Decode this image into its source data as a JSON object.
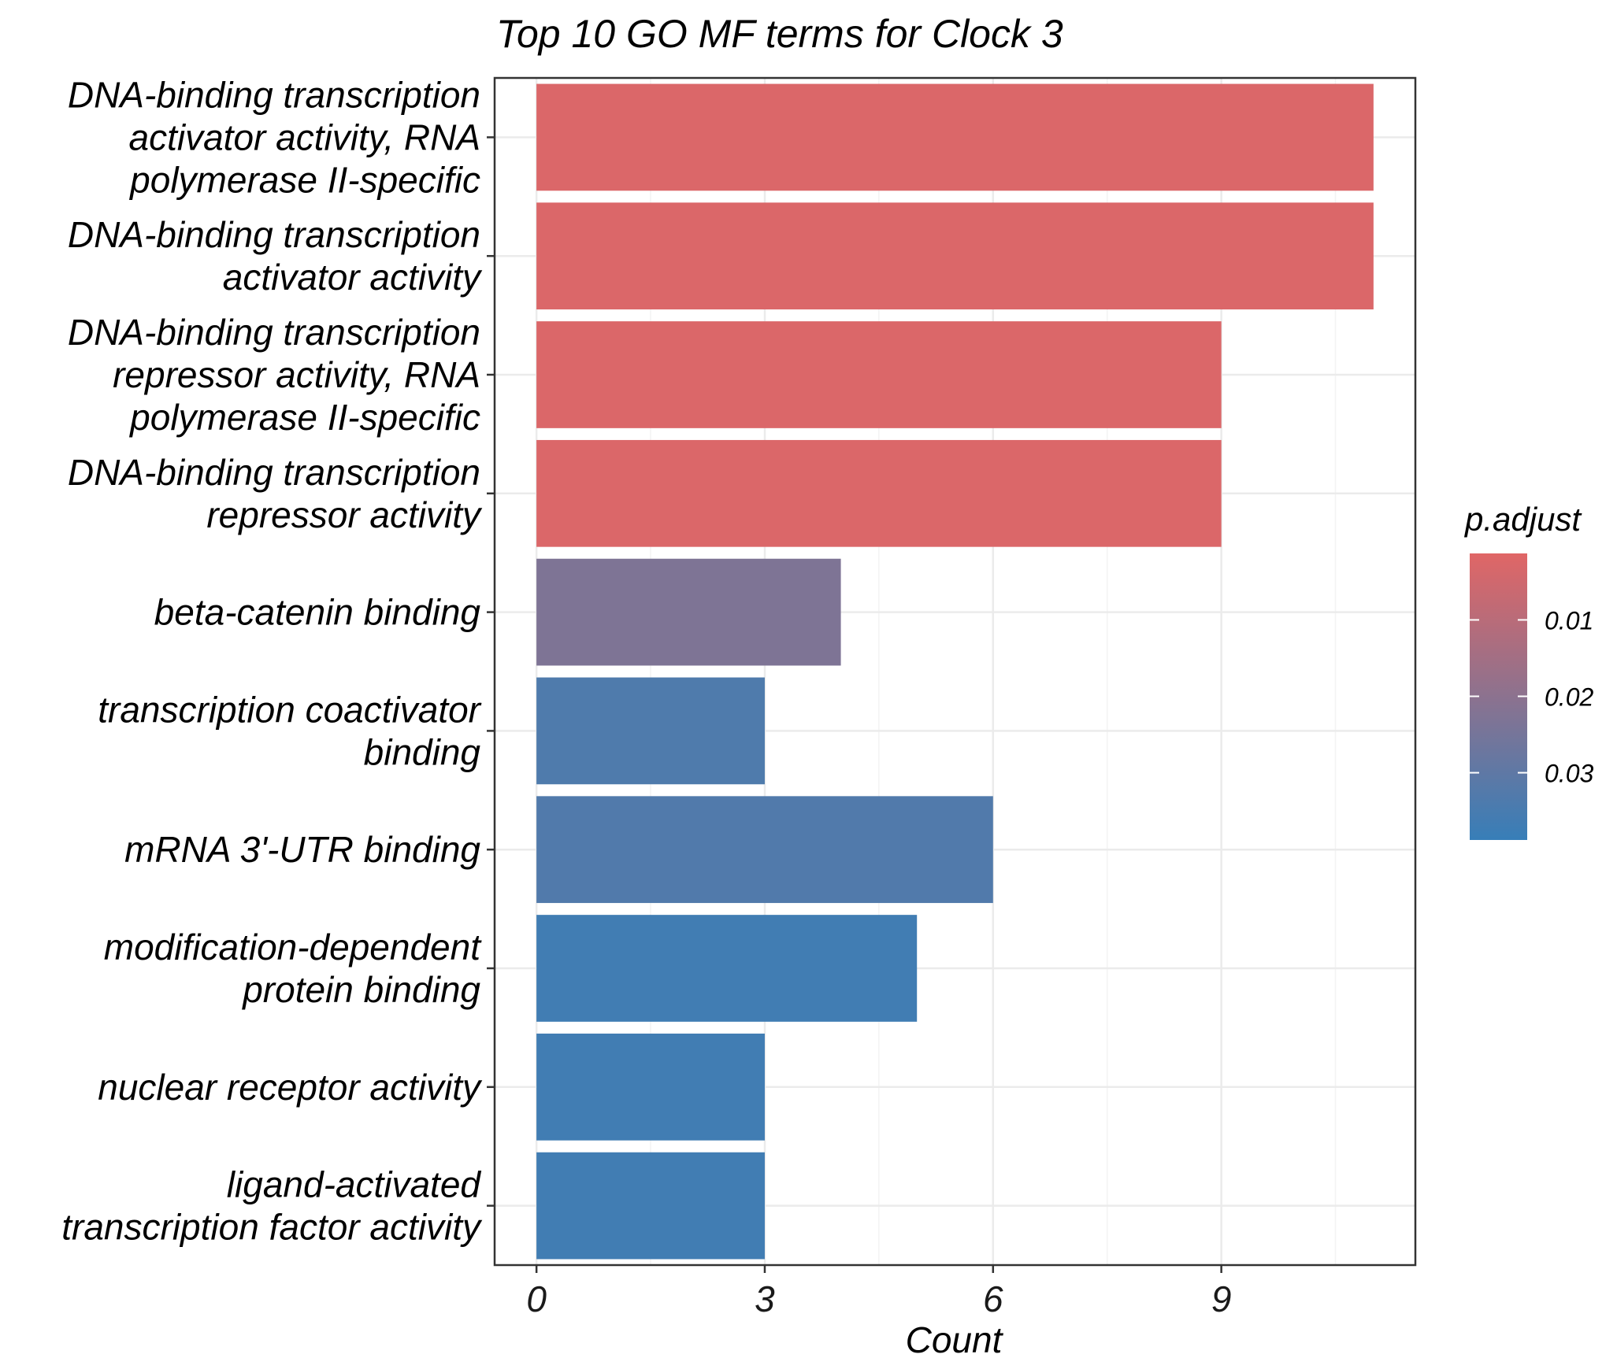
{
  "chart_data": {
    "type": "bar",
    "orientation": "horizontal",
    "title": "Top 10 GO MF terms for Clock 3",
    "xlabel": "Count",
    "ylabel": "",
    "xlim": [
      -0.55,
      11.55
    ],
    "xticks": [
      0,
      3,
      6,
      9
    ],
    "grid": true,
    "categories": [
      [
        "DNA-binding transcription",
        "activator activity, RNA",
        "polymerase II-specific"
      ],
      [
        "DNA-binding transcription",
        "activator activity"
      ],
      [
        "DNA-binding transcription",
        "repressor activity, RNA",
        "polymerase II-specific"
      ],
      [
        "DNA-binding transcription",
        "repressor activity"
      ],
      [
        "beta-catenin binding"
      ],
      [
        "transcription coactivator",
        "binding"
      ],
      [
        "mRNA 3'-UTR binding"
      ],
      [
        "modification-dependent",
        "protein binding"
      ],
      [
        "nuclear receptor activity"
      ],
      [
        "ligand-activated",
        "transcription factor activity"
      ]
    ],
    "values": [
      11,
      11,
      9,
      9,
      4,
      3,
      6,
      5,
      3,
      3
    ],
    "p_adjust": [
      0.0025,
      0.0025,
      0.0025,
      0.0025,
      0.023,
      0.0335,
      0.033,
      0.0365,
      0.0365,
      0.0365
    ],
    "legend": {
      "title": "p.adjust",
      "position": "right",
      "ticks": [
        0.01,
        0.02,
        0.03
      ],
      "tick_labels": [
        "0.01",
        "0.02",
        "0.03"
      ],
      "range": [
        0.0013,
        0.0388
      ],
      "low_color": "#E06666",
      "high_color": "#377EB8"
    }
  }
}
